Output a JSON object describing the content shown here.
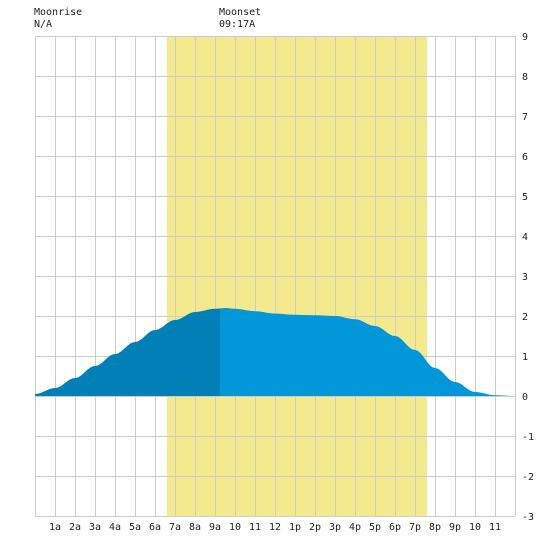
{
  "header": {
    "moonrise_label": "Moonrise",
    "moonrise_value": "N/A",
    "moonset_label": "Moonset",
    "moonset_value": "09:17A"
  },
  "colors": {
    "background": "#ffffff",
    "grid": "#cccccc",
    "daylight": "#f2ea8c",
    "tide_before_moonset": "#0180b8",
    "tide_after_moonset": "#0197d9",
    "text": "#222222"
  },
  "chart_data": {
    "type": "area",
    "x_unit": "hour of day",
    "xlim": [
      0,
      24
    ],
    "ylim": [
      -3,
      9
    ],
    "y_ticks": [
      -3,
      -2,
      -1,
      0,
      1,
      2,
      3,
      4,
      5,
      6,
      7,
      8,
      9
    ],
    "x_tick_hours": [
      1,
      2,
      3,
      4,
      5,
      6,
      7,
      8,
      9,
      10,
      11,
      12,
      13,
      14,
      15,
      16,
      17,
      18,
      19,
      20,
      21,
      22,
      23
    ],
    "x_tick_labels": [
      "1a",
      "2a",
      "3a",
      "4a",
      "5a",
      "6a",
      "7a",
      "8a",
      "9a",
      "10",
      "11",
      "12",
      "1p",
      "2p",
      "3p",
      "4p",
      "5p",
      "6p",
      "7p",
      "8p",
      "9p",
      "10",
      "11"
    ],
    "daylight": {
      "start_hour": 6.6,
      "end_hour": 19.6
    },
    "moonset_hour": 9.28,
    "series": [
      {
        "x": [
          0,
          1,
          2,
          3,
          4,
          5,
          6,
          7,
          8,
          9,
          9.5,
          10,
          11,
          12,
          13,
          14,
          15,
          16,
          17,
          18,
          19,
          20,
          21,
          22,
          23,
          24
        ],
        "y": [
          0.05,
          0.2,
          0.45,
          0.75,
          1.05,
          1.35,
          1.65,
          1.9,
          2.1,
          2.18,
          2.2,
          2.18,
          2.12,
          2.06,
          2.03,
          2.02,
          2.0,
          1.92,
          1.75,
          1.5,
          1.15,
          0.7,
          0.35,
          0.1,
          0.02,
          0.0
        ]
      }
    ]
  }
}
